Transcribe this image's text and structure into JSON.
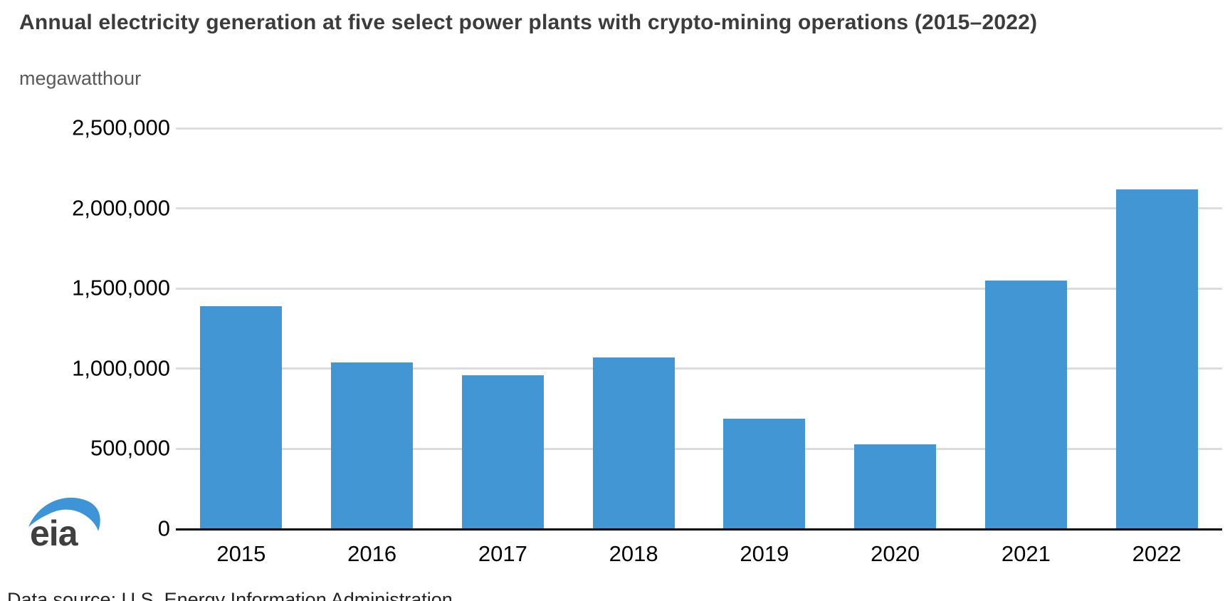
{
  "page": {
    "title": "Annual electricity generation at five select power plants with crypto-mining operations (2015–2022)",
    "unit_label": "megawatthour",
    "source_note": "Data source: U.S. Energy Information Administration",
    "logo_text": "eia"
  },
  "colors": {
    "bar": "#4296d3",
    "gridline": "#dcdcdc",
    "axis": "#000000",
    "title_text": "#3c3c3c",
    "unit_text": "#595959",
    "tick_text": "#000000",
    "logo_swoosh": "#3d94d6",
    "logo_text": "#3f3f3f"
  },
  "chart_data": {
    "type": "bar",
    "title": "Annual electricity generation at five select power plants with crypto-mining operations (2015–2022)",
    "ylabel": "megawatthour",
    "xlabel": "",
    "categories": [
      "2015",
      "2016",
      "2017",
      "2018",
      "2019",
      "2020",
      "2021",
      "2022"
    ],
    "values": [
      1390000,
      1040000,
      960000,
      1070000,
      690000,
      530000,
      1550000,
      2120000
    ],
    "series_name": "Annual electricity generation",
    "ylim": [
      0,
      2500000
    ],
    "yticks": [
      0,
      500000,
      1000000,
      1500000,
      2000000,
      2500000
    ],
    "grid": "horizontal",
    "legend": "none"
  }
}
